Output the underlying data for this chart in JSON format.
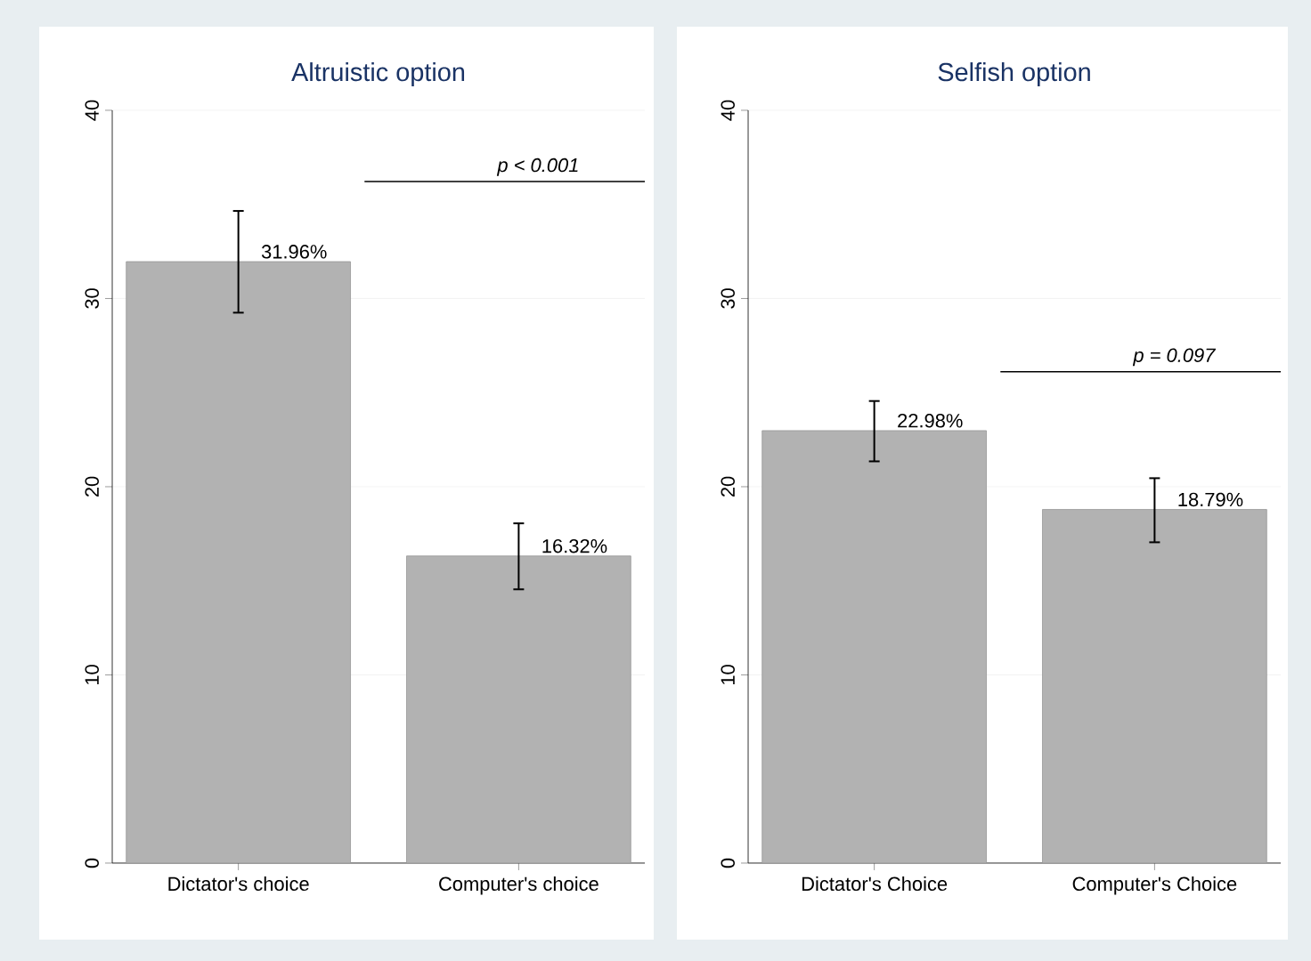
{
  "chart_data": [
    {
      "type": "bar",
      "title": "Altruistic option",
      "categories": [
        "Dictator's choice",
        "Computer's choice"
      ],
      "values": [
        31.96,
        16.32
      ],
      "color": "#b2b2b2",
      "errors": [
        [
          29.2,
          34.7
        ],
        [
          14.5,
          18.1
        ]
      ],
      "value_labels": [
        "31.96%",
        "16.32%"
      ],
      "annotations": [
        "p < 0.001"
      ],
      "ylim": [
        0,
        40
      ],
      "yticks": [
        0,
        10,
        20,
        30,
        40
      ],
      "grid": "y"
    },
    {
      "type": "bar",
      "title": "Selfish option",
      "categories": [
        "Dictator's Choice",
        "Computer's Choice"
      ],
      "values": [
        22.98,
        18.79
      ],
      "color": "#b2b2b2",
      "errors": [
        [
          21.3,
          24.6
        ],
        [
          17.0,
          20.5
        ]
      ],
      "value_labels": [
        "22.98%",
        "18.79%"
      ],
      "annotations": [
        "p = 0.097"
      ],
      "ylim": [
        0,
        40
      ],
      "yticks": [
        0,
        10,
        20,
        30,
        40
      ],
      "grid": "y"
    }
  ]
}
